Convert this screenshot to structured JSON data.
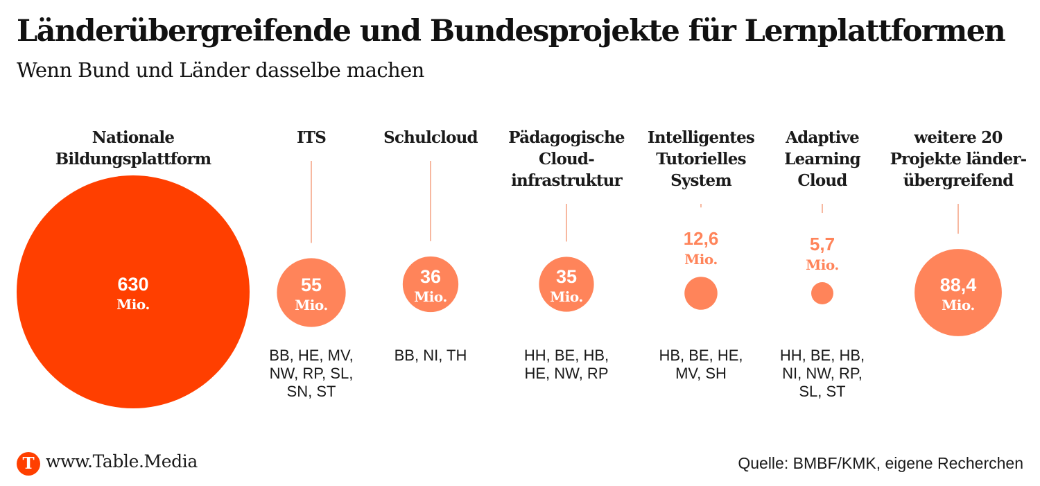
{
  "header": {
    "title": "Länderübergreifende und Bundesprojekte für Lernplattformen",
    "subtitle": "Wenn Bund und Länder dasselbe machen"
  },
  "footer": {
    "logo_letter": "T",
    "url": "www.Table.Media",
    "source": "Quelle: BMBF/KMK, eigene Recherchen"
  },
  "colors": {
    "primary": "#ff3f00",
    "secondary": "#ff845a",
    "connector": "#f7b8a0",
    "label_text": "#1a1a1a",
    "inner_value_text": "#ffffff"
  },
  "chart_data": {
    "type": "bubble",
    "title": "Länderübergreifende und Bundesprojekte für Lernplattformen",
    "subtitle": "Wenn Bund und Länder dasselbe machen",
    "unit": "Mio.",
    "items": [
      {
        "name_lines": [
          "Nationale",
          "Bildungsplattform"
        ],
        "value": 630,
        "value_label": "630",
        "unit_label": "Mio.",
        "states_lines": [],
        "color": "primary",
        "label_inside": true
      },
      {
        "name_lines": [
          "ITS"
        ],
        "value": 55,
        "value_label": "55",
        "unit_label": "Mio.",
        "states_lines": [
          "BB, HE, MV,",
          "NW, RP, SL,",
          "SN, ST"
        ],
        "color": "secondary",
        "label_inside": true
      },
      {
        "name_lines": [
          "Schulcloud"
        ],
        "value": 36,
        "value_label": "36",
        "unit_label": "Mio.",
        "states_lines": [
          "BB, NI, TH"
        ],
        "color": "secondary",
        "label_inside": true
      },
      {
        "name_lines": [
          "Pädagogische",
          "Cloud-",
          "infrastruktur"
        ],
        "value": 35,
        "value_label": "35",
        "unit_label": "Mio.",
        "states_lines": [
          "HH, BE, HB,",
          "HE, NW, RP"
        ],
        "color": "secondary",
        "label_inside": true
      },
      {
        "name_lines": [
          "Intelligentes",
          "Tutorielles",
          "System"
        ],
        "value": 12.6,
        "value_label": "12,6",
        "unit_label": "Mio.",
        "states_lines": [
          "HB, BE, HE,",
          "MV, SH"
        ],
        "color": "secondary",
        "label_inside": false
      },
      {
        "name_lines": [
          "Adaptive",
          "Learning",
          "Cloud"
        ],
        "value": 5.7,
        "value_label": "5,7",
        "unit_label": "Mio.",
        "states_lines": [
          "HH, BE, HB,",
          "NI, NW, RP,",
          "SL, ST"
        ],
        "color": "secondary",
        "label_inside": false
      },
      {
        "name_lines": [
          "weitere 20",
          "Projekte länder-",
          "übergreifend"
        ],
        "value": 88.4,
        "value_label": "88,4",
        "unit_label": "Mio.",
        "states_lines": [],
        "color": "secondary",
        "label_inside": true
      }
    ]
  }
}
